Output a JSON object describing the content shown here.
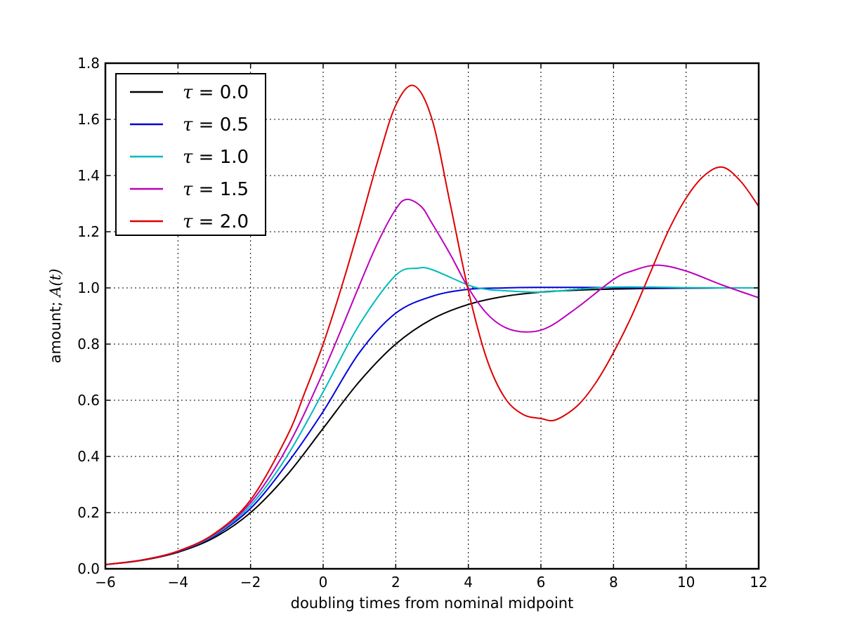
{
  "chart_data": {
    "type": "line",
    "xlabel": "doubling times from nominal midpoint",
    "ylabel_text": "amount; ",
    "ylabel_math": "A(t)",
    "xlim": [
      -6,
      12
    ],
    "ylim": [
      0,
      1.8
    ],
    "xticks": [
      -6,
      -4,
      -2,
      0,
      2,
      4,
      6,
      8,
      10,
      12
    ],
    "xtick_labels": [
      "−6",
      "−4",
      "−2",
      "0",
      "2",
      "4",
      "6",
      "8",
      "10",
      "12"
    ],
    "yticks": [
      0,
      0.2,
      0.4,
      0.6,
      0.8,
      1.0,
      1.2,
      1.4,
      1.6,
      1.8
    ],
    "ytick_labels": [
      "0.0",
      "0.2",
      "0.4",
      "0.6",
      "0.8",
      "1.0",
      "1.2",
      "1.4",
      "1.6",
      "1.8"
    ],
    "grid": true,
    "legend_position": "top-left",
    "series": [
      {
        "name": "τ = 0.0",
        "legend_symbol": "τ",
        "legend_value": " = 0.0",
        "color": "#000000",
        "x": [
          -6,
          -5,
          -4,
          -3,
          -2,
          -1,
          0,
          1,
          2,
          3,
          4,
          5,
          6,
          7,
          8,
          9,
          10,
          11,
          12
        ],
        "y": [
          0.015,
          0.03,
          0.059,
          0.111,
          0.2,
          0.333,
          0.5,
          0.667,
          0.8,
          0.889,
          0.941,
          0.97,
          0.985,
          0.992,
          0.996,
          0.998,
          0.999,
          1.0,
          1.0
        ]
      },
      {
        "name": "τ = 0.5",
        "legend_symbol": "τ",
        "legend_value": " = 0.5",
        "color": "#0000dd",
        "x": [
          -6,
          -5,
          -4,
          -3,
          -2,
          -1,
          0,
          1,
          2,
          3,
          4,
          5,
          6,
          7,
          8,
          9,
          10,
          11,
          12
        ],
        "y": [
          0.015,
          0.031,
          0.061,
          0.117,
          0.215,
          0.373,
          0.56,
          0.77,
          0.91,
          0.97,
          0.995,
          1.0,
          1.002,
          1.002,
          1.001,
          1.0,
          1.0,
          1.0,
          1.0
        ]
      },
      {
        "name": "τ = 1.0",
        "legend_symbol": "τ",
        "legend_value": " = 1.0",
        "color": "#00bbbb",
        "x": [
          -6,
          -5,
          -4,
          -3,
          -2,
          -1,
          0,
          1,
          2,
          2.6,
          3,
          4,
          4.5,
          5,
          6,
          7,
          8,
          9,
          10,
          11,
          12
        ],
        "y": [
          0.015,
          0.031,
          0.062,
          0.12,
          0.225,
          0.4,
          0.63,
          0.87,
          1.045,
          1.07,
          1.065,
          1.01,
          0.995,
          0.99,
          0.985,
          0.995,
          1.003,
          1.003,
          1.001,
          1.0,
          1.0
        ]
      },
      {
        "name": "τ = 1.5",
        "legend_symbol": "τ",
        "legend_value": " = 1.5",
        "color": "#bb00bb",
        "x": [
          -6,
          -5,
          -4,
          -3,
          -2,
          -1,
          0,
          1,
          1.5,
          2,
          2.3,
          2.7,
          3,
          3.5,
          4,
          4.5,
          5,
          5.6,
          6.2,
          7,
          8,
          8.5,
          9.2,
          10,
          11,
          12
        ],
        "y": [
          0.015,
          0.031,
          0.062,
          0.123,
          0.235,
          0.43,
          0.7,
          1.01,
          1.16,
          1.28,
          1.315,
          1.29,
          1.23,
          1.12,
          1.0,
          0.91,
          0.86,
          0.843,
          0.86,
          0.93,
          1.03,
          1.06,
          1.081,
          1.06,
          1.01,
          0.965
        ]
      },
      {
        "name": "τ = 2.0",
        "legend_symbol": "τ",
        "legend_value": " = 2.0",
        "color": "#dd0000",
        "x": [
          -6,
          -5,
          -4,
          -3,
          -2,
          -1,
          -0.5,
          0,
          0.5,
          1,
          1.5,
          2,
          2.5,
          3,
          3.5,
          4,
          4.5,
          5,
          5.5,
          6,
          6.4,
          7,
          7.5,
          8,
          8.5,
          9,
          9.5,
          10,
          10.5,
          11,
          11.5,
          12
        ],
        "y": [
          0.015,
          0.031,
          0.063,
          0.125,
          0.245,
          0.47,
          0.63,
          0.8,
          1.0,
          1.22,
          1.45,
          1.65,
          1.72,
          1.6,
          1.3,
          0.99,
          0.75,
          0.61,
          0.55,
          0.535,
          0.53,
          0.58,
          0.66,
          0.77,
          0.9,
          1.05,
          1.2,
          1.32,
          1.4,
          1.43,
          1.38,
          1.29
        ]
      }
    ]
  }
}
